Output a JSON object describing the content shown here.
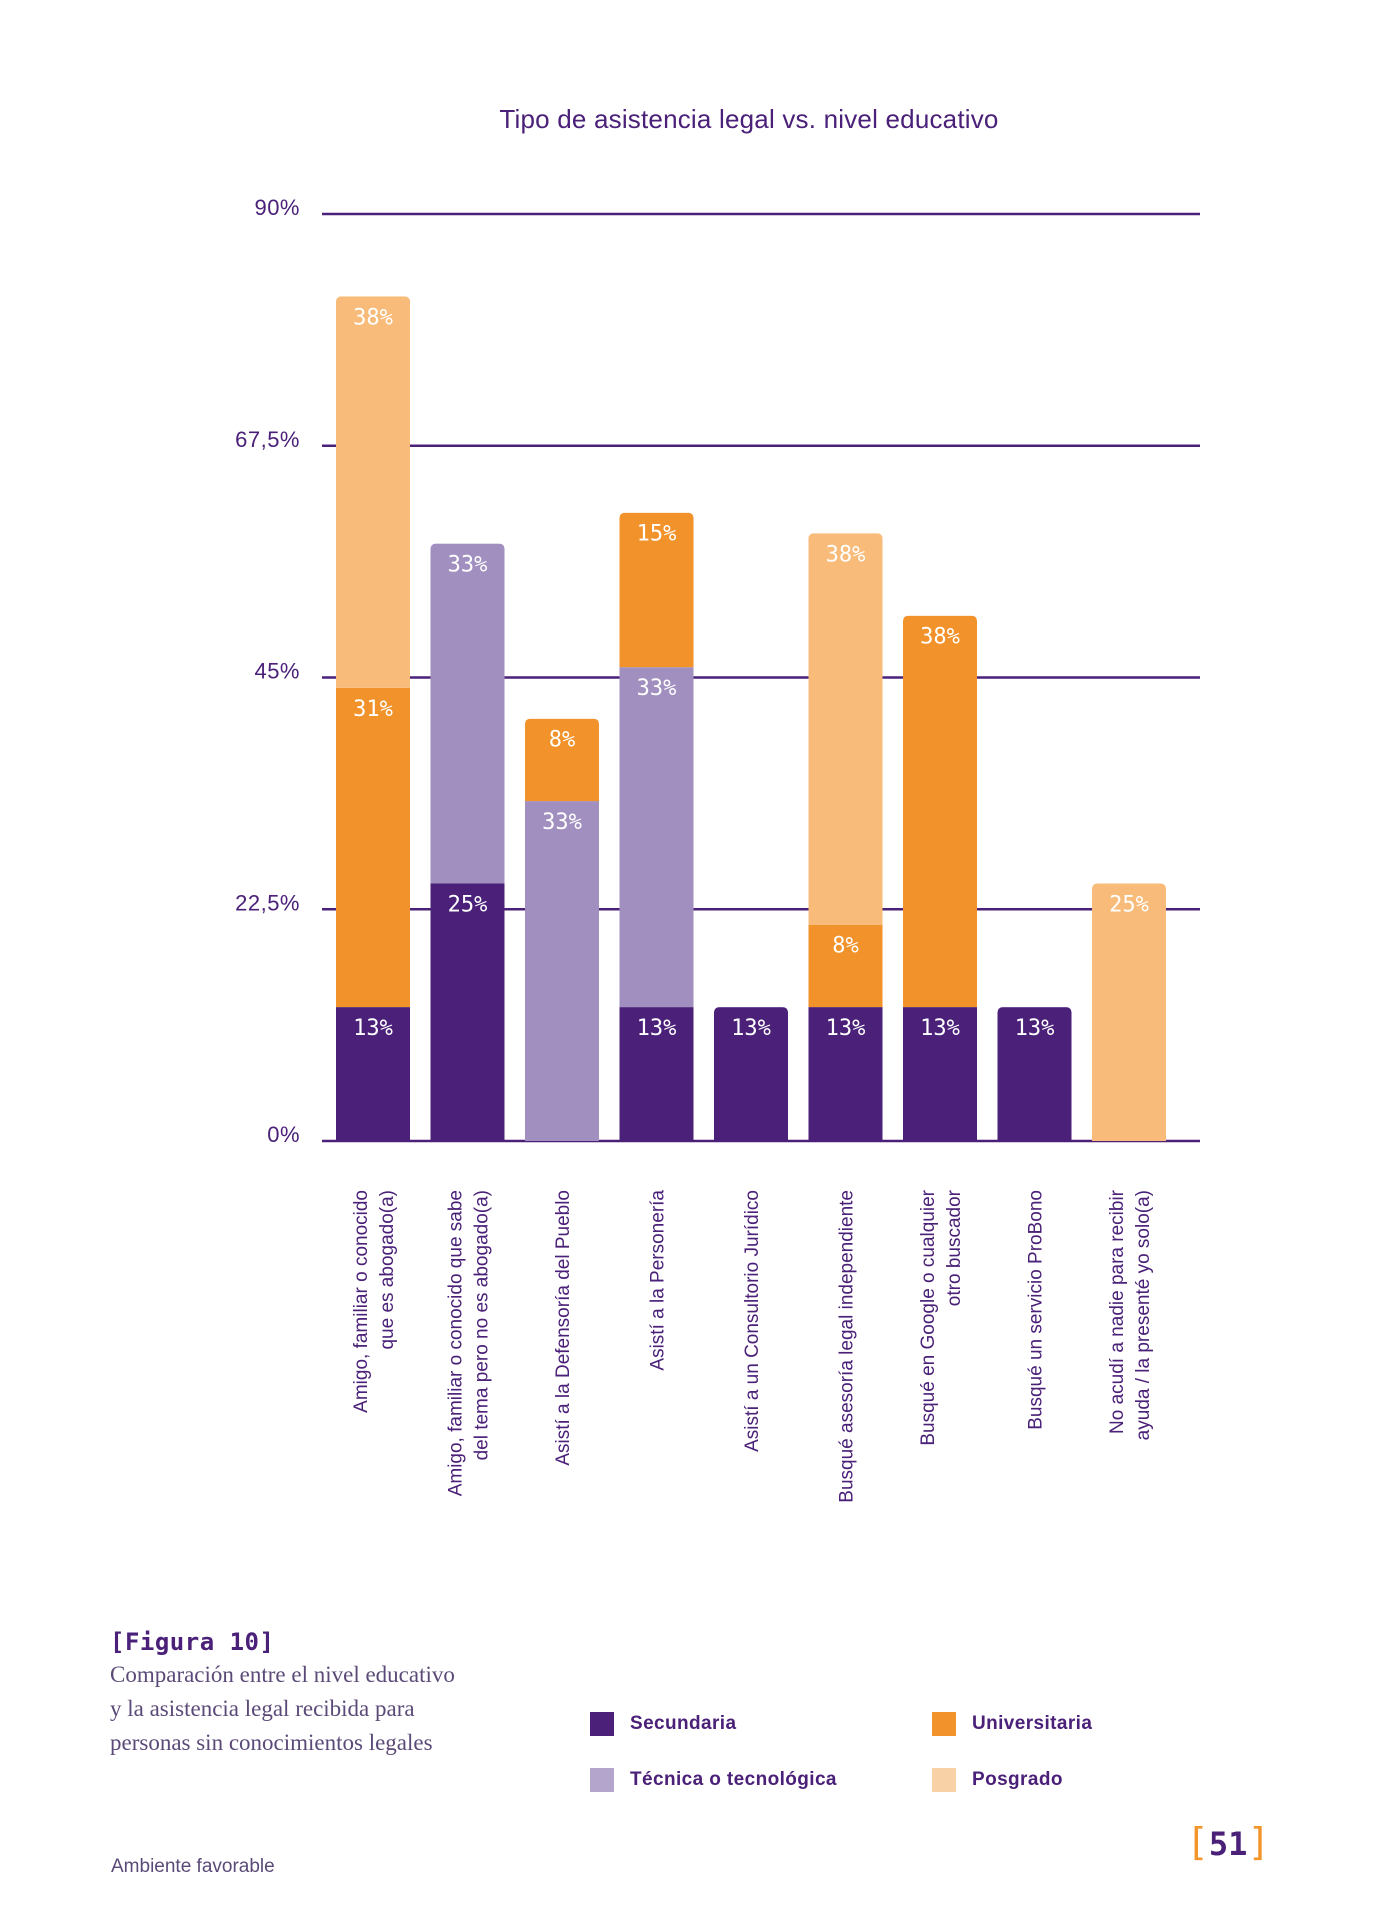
{
  "chart_data": {
    "type": "bar",
    "stacked": true,
    "title": "Tipo de asistencia legal vs. nivel educativo",
    "xlabel": "",
    "ylabel": "",
    "ylim": [
      0,
      90
    ],
    "yticks": [
      0,
      22.5,
      45,
      67.5,
      90
    ],
    "ytick_labels": [
      "0%",
      "22,5%",
      "45%",
      "67,5%",
      "90%"
    ],
    "grid": true,
    "legend_position": "bottom-right",
    "categories": [
      "Amigo, familiar o conocido que es abogado(a)",
      "Amigo, familiar o conocido que sabe del tema pero no es abogado(a)",
      "Asistí a la Defensoría del Pueblo",
      "Asistí a la Personería",
      "Asistí a un Consultorio Jurídico",
      "Busqué asesoría legal independiente",
      "Busqué en Google o cualquier otro buscador",
      "Busqué un servicio ProBono",
      "No acudí a nadie para recibir ayuda / la presenté yo solo(a)"
    ],
    "category_label_lines": [
      [
        "Amigo, familiar o conocido",
        "que es abogado(a)"
      ],
      [
        "Amigo, familiar o conocido que sabe",
        "del tema pero no es abogado(a)"
      ],
      [
        "Asistí a la Defensoría del Pueblo"
      ],
      [
        "Asistí a la Personería"
      ],
      [
        "Asistí a un Consultorio Jurídico"
      ],
      [
        "Busqué asesoría legal independiente"
      ],
      [
        "Busqué en Google o cualquier",
        "otro buscador"
      ],
      [
        "Busqué un servicio ProBono"
      ],
      [
        "No acudí a nadie para recibir",
        "ayuda / la presenté yo solo(a)"
      ]
    ],
    "series": [
      {
        "name": "Secundaria",
        "color": "#4b2079",
        "values": [
          13,
          25,
          0,
          13,
          13,
          13,
          13,
          13,
          0
        ]
      },
      {
        "name": "Técnica o tecnológica",
        "color": "#a08fbf",
        "values": [
          0,
          33,
          33,
          33,
          0,
          0,
          0,
          0,
          0
        ]
      },
      {
        "name": "Universitaria",
        "color": "#f2922a",
        "values": [
          31,
          0,
          8,
          15,
          0,
          8,
          38,
          0,
          0
        ]
      },
      {
        "name": "Posgrado",
        "color": "#f8bb7a",
        "values": [
          38,
          0,
          0,
          0,
          0,
          38,
          0,
          0,
          25
        ]
      }
    ],
    "value_suffix": "%"
  },
  "caption": {
    "figure_label": "[Figura 10]",
    "text": "Comparación entre el nivel educativo y la asistencia legal recibida para personas sin conocimientos legales"
  },
  "legend": {
    "items": [
      {
        "label": "Secundaria",
        "color": "#4b2079"
      },
      {
        "label": "Universitaria",
        "color": "#f2922a"
      },
      {
        "label": "Técnica o tecnológica",
        "color": "#b3a5cc"
      },
      {
        "label": "Posgrado",
        "color": "#f8d2a6"
      }
    ]
  },
  "footer": {
    "section": "Ambiente favorable",
    "page_number": "51",
    "bracket_open": "[",
    "bracket_close": "]"
  },
  "colors": {
    "primary": "#4b2079",
    "accent": "#f2922a"
  }
}
